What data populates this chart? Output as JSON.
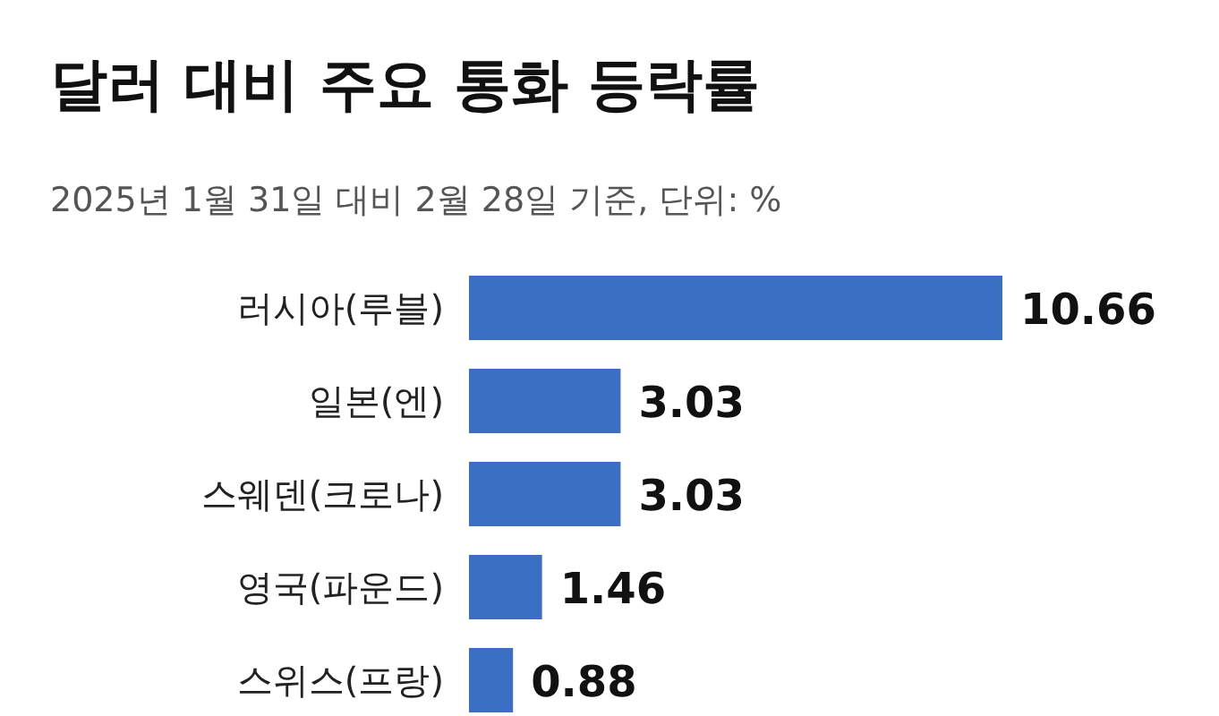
{
  "chart_data": {
    "type": "bar",
    "orientation": "horizontal",
    "title": "달러 대비 주요 통화 등락률",
    "subtitle": "2025년 1월 31일 대비 2월 28일 기준, 단위: %",
    "categories": [
      "러시아(루블)",
      "일본(엔)",
      "스웨덴(크로나)",
      "영국(파운드)",
      "스위스(프랑)"
    ],
    "values": [
      10.66,
      3.03,
      3.03,
      1.46,
      0.88
    ],
    "color": "#3a6fc4",
    "data_labels": true
  }
}
